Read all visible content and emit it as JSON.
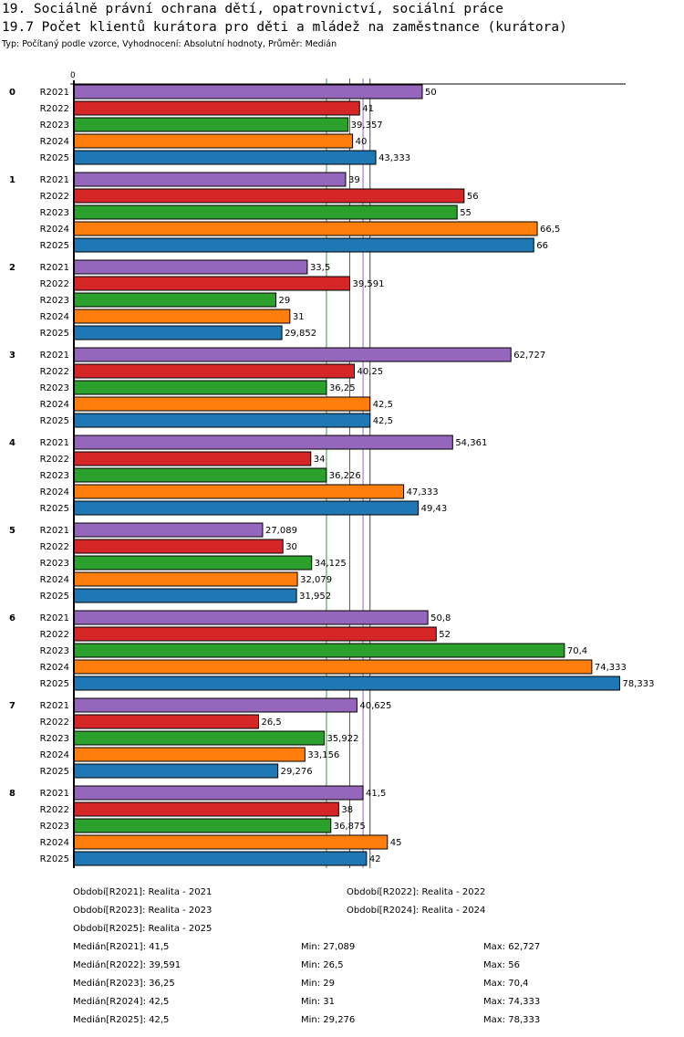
{
  "header": {
    "title": "19. Sociálně právní ochrana dětí, opatrovnictví, sociální práce",
    "subtitle": "19.7 Počet klientů kurátora pro děti a mládež na zaměstnance (kurátora)",
    "info": "Typ: Počítaný podle vzorce, Vyhodnocení: Absolutní hodnoty, Průměr: Medián"
  },
  "chart_data": {
    "type": "bar",
    "orientation": "horizontal",
    "xlim": [
      0,
      79
    ],
    "x_tick_labels": [
      "0"
    ],
    "categories": [
      "0",
      "1",
      "2",
      "3",
      "4",
      "5",
      "6",
      "7",
      "8"
    ],
    "series": [
      {
        "name": "R2021",
        "color": "#9467bd",
        "values": [
          50,
          39,
          33.5,
          62.727,
          54.361,
          27.089,
          50.8,
          40.625,
          41.5
        ],
        "labels": [
          "50",
          "39",
          "33,5",
          "62,727",
          "54,361",
          "27,089",
          "50,8",
          "40,625",
          "41,5"
        ]
      },
      {
        "name": "R2022",
        "color": "#d62728",
        "values": [
          41,
          56,
          39.591,
          40.25,
          34,
          30,
          52,
          26.5,
          38
        ],
        "labels": [
          "41",
          "56",
          "39,591",
          "40,25",
          "34",
          "30",
          "52",
          "26,5",
          "38"
        ]
      },
      {
        "name": "R2023",
        "color": "#2ca02c",
        "values": [
          39.357,
          55,
          29,
          36.25,
          36.226,
          34.125,
          70.4,
          35.922,
          36.875
        ],
        "labels": [
          "39,357",
          "55",
          "29",
          "36,25",
          "36,226",
          "34,125",
          "70,4",
          "35,922",
          "36,875"
        ]
      },
      {
        "name": "R2024",
        "color": "#ff7f0e",
        "values": [
          40,
          66.5,
          31,
          42.5,
          47.333,
          32.079,
          74.333,
          33.156,
          45
        ],
        "labels": [
          "40",
          "66,5",
          "31",
          "42,5",
          "47,333",
          "32,079",
          "74,333",
          "33,156",
          "45"
        ]
      },
      {
        "name": "R2025",
        "color": "#1f77b4",
        "values": [
          43.333,
          66,
          29.852,
          42.5,
          49.43,
          31.952,
          78.333,
          29.276,
          42
        ],
        "labels": [
          "43,333",
          "66",
          "29,852",
          "42,5",
          "49,43",
          "31,952",
          "78,333",
          "29,276",
          "42"
        ]
      }
    ],
    "median_lines": [
      {
        "series": "R2023",
        "value": 36.25,
        "color": "#2ca02c"
      },
      {
        "series": "R2022",
        "value": 39.591,
        "color": "#d62728"
      },
      {
        "series": "R2021",
        "value": 41.5,
        "color": "#9467bd"
      },
      {
        "series": "R2024",
        "value": 42.5,
        "color": "#ff7f0e"
      },
      {
        "series": "R2025",
        "value": 42.5,
        "color": "#1f77b4"
      }
    ]
  },
  "legend": {
    "periods": [
      "Období[R2021]: Realita - 2021",
      "Období[R2022]: Realita - 2022",
      "Období[R2023]: Realita - 2023",
      "Období[R2024]: Realita - 2024",
      "Období[R2025]: Realita - 2025"
    ],
    "stats": [
      {
        "median": "Medián[R2021]: 41,5",
        "min": "Min: 27,089",
        "max": "Max: 62,727"
      },
      {
        "median": "Medián[R2022]: 39,591",
        "min": "Min: 26,5",
        "max": "Max: 56"
      },
      {
        "median": "Medián[R2023]: 36,25",
        "min": "Min: 29",
        "max": "Max: 70,4"
      },
      {
        "median": "Medián[R2024]: 42,5",
        "min": "Min: 31",
        "max": "Max: 74,333"
      },
      {
        "median": "Medián[R2025]: 42,5",
        "min": "Min: 29,276",
        "max": "Max: 78,333"
      }
    ]
  }
}
